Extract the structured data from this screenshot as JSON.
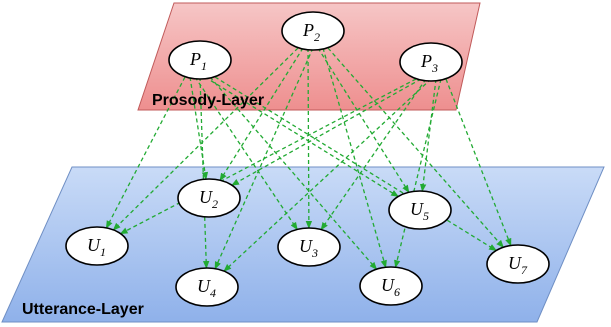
{
  "layers": {
    "prosody": {
      "label": "Prosody-Layer"
    },
    "utterance": {
      "label": "Utterance-Layer"
    }
  },
  "nodes": {
    "P1": {
      "main": "P",
      "sub": "1"
    },
    "P2": {
      "main": "P",
      "sub": "2"
    },
    "P3": {
      "main": "P",
      "sub": "3"
    },
    "U1": {
      "main": "U",
      "sub": "1"
    },
    "U2": {
      "main": "U",
      "sub": "2"
    },
    "U3": {
      "main": "U",
      "sub": "3"
    },
    "U4": {
      "main": "U",
      "sub": "4"
    },
    "U5": {
      "main": "U",
      "sub": "5"
    },
    "U6": {
      "main": "U",
      "sub": "6"
    },
    "U7": {
      "main": "U",
      "sub": "7"
    }
  },
  "colors": {
    "prosody_fill": "#f4a9a9",
    "utterance_fill": "#a9c6f2",
    "edge": "#22aa33"
  }
}
